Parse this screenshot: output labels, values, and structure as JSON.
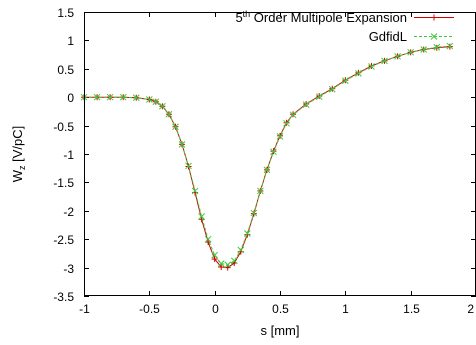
{
  "chart_data": {
    "type": "line",
    "title": "",
    "xlabel": "s [mm]",
    "ylabel": {
      "main": "W",
      "sub": "z",
      "unit": " [V/pC]"
    },
    "xlim": [
      -1,
      2
    ],
    "ylim": [
      -3.5,
      1.5
    ],
    "xticks": [
      {
        "v": -1,
        "label": "-1"
      },
      {
        "v": -0.5,
        "label": "-0.5"
      },
      {
        "v": 0,
        "label": "0"
      },
      {
        "v": 0.5,
        "label": "0.5"
      },
      {
        "v": 1,
        "label": "1"
      },
      {
        "v": 1.5,
        "label": "1.5"
      },
      {
        "v": 2,
        "label": "2"
      }
    ],
    "yticks": [
      {
        "v": 1.5,
        "label": "1.5"
      },
      {
        "v": 1,
        "label": "1"
      },
      {
        "v": 0.5,
        "label": "0.5"
      },
      {
        "v": 0,
        "label": "0"
      },
      {
        "v": -0.5,
        "label": "-0.5"
      },
      {
        "v": -1,
        "label": "-1"
      },
      {
        "v": -1.5,
        "label": "-1.5"
      },
      {
        "v": -2,
        "label": "-2"
      },
      {
        "v": -2.5,
        "label": "-2.5"
      },
      {
        "v": -3,
        "label": "-3"
      },
      {
        "v": -3.5,
        "label": "-3.5"
      }
    ],
    "grid": false,
    "legend_position": "top-right",
    "series": [
      {
        "name": {
          "base": "5",
          "sup": "th",
          "rest": " Order Multipole Expansion"
        },
        "color": "#d40000",
        "marker": "plus",
        "x": [
          -1.0,
          -0.9,
          -0.8,
          -0.7,
          -0.6,
          -0.5,
          -0.45,
          -0.4,
          -0.35,
          -0.3,
          -0.25,
          -0.2,
          -0.15,
          -0.1,
          -0.05,
          0.0,
          0.05,
          0.1,
          0.15,
          0.2,
          0.25,
          0.3,
          0.35,
          0.4,
          0.45,
          0.5,
          0.55,
          0.6,
          0.7,
          0.8,
          0.9,
          1.0,
          1.1,
          1.2,
          1.3,
          1.4,
          1.5,
          1.6,
          1.7,
          1.8
        ],
        "y": [
          0.0,
          0.0,
          0.0,
          0.0,
          -0.01,
          -0.04,
          -0.08,
          -0.16,
          -0.3,
          -0.52,
          -0.83,
          -1.22,
          -1.68,
          -2.15,
          -2.55,
          -2.85,
          -2.99,
          -3.0,
          -2.92,
          -2.72,
          -2.42,
          -2.05,
          -1.65,
          -1.28,
          -0.95,
          -0.68,
          -0.45,
          -0.3,
          -0.12,
          0.02,
          0.15,
          0.3,
          0.43,
          0.55,
          0.64,
          0.72,
          0.79,
          0.84,
          0.87,
          0.89
        ]
      },
      {
        "name": {
          "base": "GdfidL",
          "sup": "",
          "rest": ""
        },
        "color": "#3ec83e",
        "marker": "cross",
        "x": [
          -1.0,
          -0.9,
          -0.8,
          -0.7,
          -0.6,
          -0.5,
          -0.45,
          -0.4,
          -0.35,
          -0.3,
          -0.25,
          -0.2,
          -0.15,
          -0.1,
          -0.05,
          0.0,
          0.05,
          0.1,
          0.15,
          0.2,
          0.25,
          0.3,
          0.35,
          0.4,
          0.45,
          0.5,
          0.55,
          0.6,
          0.7,
          0.8,
          0.9,
          1.0,
          1.1,
          1.2,
          1.3,
          1.4,
          1.5,
          1.6,
          1.7,
          1.8
        ],
        "y": [
          0.0,
          0.0,
          0.0,
          0.0,
          -0.01,
          -0.04,
          -0.08,
          -0.16,
          -0.3,
          -0.52,
          -0.83,
          -1.21,
          -1.65,
          -2.1,
          -2.5,
          -2.78,
          -2.93,
          -2.95,
          -2.88,
          -2.69,
          -2.4,
          -2.04,
          -1.65,
          -1.28,
          -0.96,
          -0.69,
          -0.46,
          -0.31,
          -0.13,
          0.01,
          0.14,
          0.29,
          0.42,
          0.54,
          0.64,
          0.72,
          0.79,
          0.84,
          0.88,
          0.9
        ]
      }
    ]
  }
}
